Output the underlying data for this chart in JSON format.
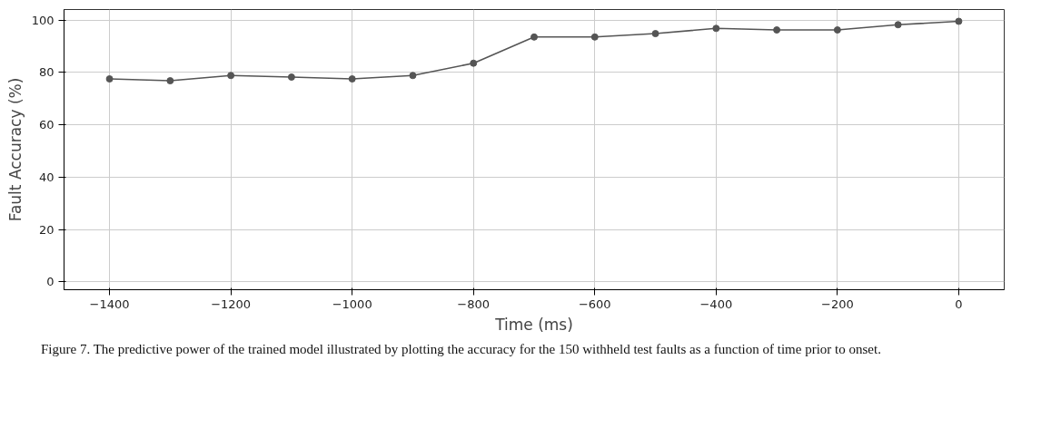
{
  "chart_data": {
    "type": "line",
    "xlabel": "Time (ms)",
    "ylabel": "Fault Accuracy (%)",
    "x": [
      -1400,
      -1300,
      -1200,
      -1100,
      -1000,
      -900,
      -800,
      -700,
      -600,
      -500,
      -400,
      -300,
      -200,
      -100,
      0
    ],
    "series": [
      {
        "color": "#555555",
        "values": [
          77.5,
          76.8,
          78.8,
          78.2,
          77.5,
          78.8,
          83.5,
          93.5,
          93.5,
          94.8,
          96.8,
          96.2,
          96.2,
          98.2,
          99.5
        ]
      }
    ],
    "marker": "circle",
    "grid": true,
    "xlim": [
      -1475,
      75
    ],
    "ylim": [
      -3,
      104
    ],
    "xticks": [
      {
        "value": -1400,
        "label": "−1400"
      },
      {
        "value": -1200,
        "label": "−1200"
      },
      {
        "value": -1000,
        "label": "−1000"
      },
      {
        "value": -800,
        "label": "−800"
      },
      {
        "value": -600,
        "label": "−600"
      },
      {
        "value": -400,
        "label": "−400"
      },
      {
        "value": -200,
        "label": "−200"
      },
      0
    ],
    "yticks": [
      0,
      20,
      40,
      60,
      80,
      100
    ],
    "annotations": [
      "Figure 7. The predictive power of the trained model illustrated by plotting the accuracy for the 150 withheld test faults as a function of time prior to onset."
    ]
  }
}
